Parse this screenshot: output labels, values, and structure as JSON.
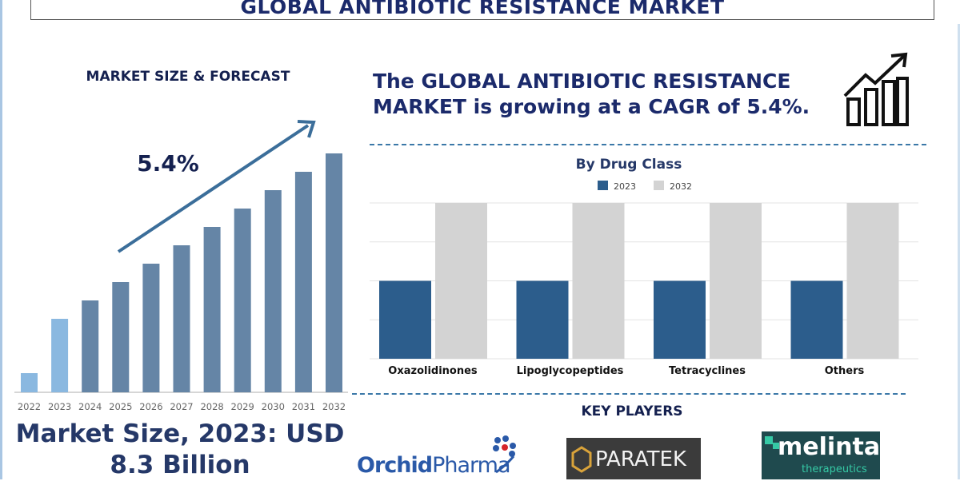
{
  "title": "GLOBAL ANTIBIOTIC RESISTANCE MARKET",
  "headline": [
    "The GLOBAL ANTIBIOTIC RESISTANCE",
    "MARKET is growing at a CAGR of 5.4%."
  ],
  "growth_icon": "bar-chart-trend-up-icon",
  "market_size": [
    "Market Size, 2023: USD",
    "8.3 Billion"
  ],
  "key_players": {
    "heading": "KEY PLAYERS",
    "logos": [
      {
        "name": "OrchidPharma",
        "parts": [
          "Orchid",
          "Pharma"
        ]
      },
      {
        "name": "PARATEK"
      },
      {
        "name": "melinta",
        "sub": "therapeutics"
      }
    ]
  },
  "chart_data": [
    {
      "type": "bar",
      "title": "MARKET SIZE & FORECAST",
      "annotation": "5.4%",
      "categories": [
        "2022",
        "2023",
        "2024",
        "2025",
        "2026",
        "2027",
        "2028",
        "2029",
        "2030",
        "2031",
        "2032"
      ],
      "values": [
        24,
        92,
        115,
        138,
        161,
        184,
        207,
        230,
        253,
        276,
        299
      ],
      "values_note": "relative heights (no axis printed)",
      "colors": {
        "historic": "#8ab8e0",
        "forecast": "#6585a6",
        "arrow": "#3b6e9a"
      }
    },
    {
      "type": "bar",
      "title": "By Drug Class",
      "categories": [
        "Oxazolidinones",
        "Lipoglycopeptides",
        "Tetracyclines",
        "Others"
      ],
      "series": [
        {
          "name": "2023",
          "values": [
            2,
            2,
            2,
            2
          ],
          "color": "#2c5d8c"
        },
        {
          "name": "2032",
          "values": [
            4,
            4,
            4,
            4
          ],
          "color": "#d3d3d3"
        }
      ],
      "ylim": [
        0,
        4
      ],
      "grid": true,
      "legend": "top"
    }
  ]
}
